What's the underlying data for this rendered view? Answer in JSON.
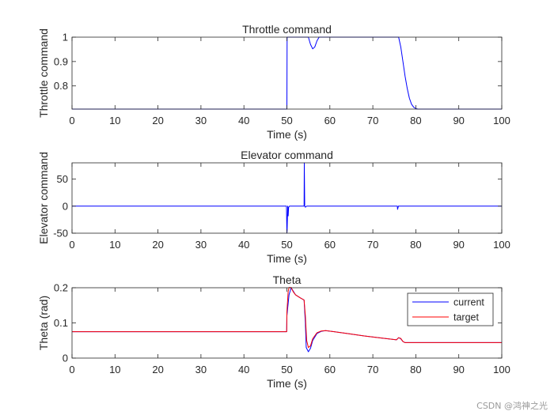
{
  "chart_data": [
    {
      "type": "line",
      "title": "Throttle command",
      "xlabel": "Time (s)",
      "ylabel": "Throttle command",
      "xlim": [
        0,
        100
      ],
      "ylim": [
        0.705,
        1.0
      ],
      "xticks": [
        0,
        10,
        20,
        30,
        40,
        50,
        60,
        70,
        80,
        90,
        100
      ],
      "yticks": [
        0.8,
        0.9,
        1
      ],
      "xtick_labels": [
        "0",
        "10",
        "20",
        "30",
        "40",
        "50",
        "60",
        "70",
        "80",
        "90",
        "100"
      ],
      "ytick_labels": [
        "0.8",
        "0.9",
        "1"
      ],
      "series": [
        {
          "name": "throttle",
          "color": "#0000ff",
          "x": [
            0,
            50,
            50.05,
            50.3,
            55,
            55.5,
            56,
            56.5,
            57,
            57.5,
            58,
            76,
            76.5,
            77,
            77.5,
            78,
            78.5,
            79,
            79.5,
            80,
            80.5,
            100
          ],
          "y": [
            0.705,
            0.705,
            1.0,
            1.0,
            1.0,
            0.97,
            0.952,
            0.96,
            0.985,
            1.0,
            1.0,
            1.0,
            0.96,
            0.9,
            0.84,
            0.79,
            0.75,
            0.725,
            0.713,
            0.707,
            0.705,
            0.705
          ]
        }
      ]
    },
    {
      "type": "line",
      "title": "Elevator command",
      "xlabel": "Time (s)",
      "ylabel": "Elevator command",
      "xlim": [
        0,
        100
      ],
      "ylim": [
        -50,
        80
      ],
      "xticks": [
        0,
        10,
        20,
        30,
        40,
        50,
        60,
        70,
        80,
        90,
        100
      ],
      "yticks": [
        -50,
        0,
        50
      ],
      "xtick_labels": [
        "0",
        "10",
        "20",
        "30",
        "40",
        "50",
        "60",
        "70",
        "80",
        "90",
        "100"
      ],
      "ytick_labels": [
        "-50",
        "0",
        "50"
      ],
      "series": [
        {
          "name": "elevator",
          "color": "#0000ff",
          "x": [
            0,
            49.9,
            50,
            50.05,
            50.2,
            50.3,
            50.4,
            50.6,
            54,
            54.05,
            54.15,
            54.3,
            54.6,
            55,
            75.7,
            75.75,
            75.85,
            75.95,
            100
          ],
          "y": [
            0,
            0,
            -50,
            -45,
            0,
            -18,
            -2,
            0,
            0,
            80,
            0,
            -2,
            0,
            0,
            0,
            -6,
            -3,
            0,
            0
          ]
        }
      ]
    },
    {
      "type": "line",
      "title": "Theta",
      "xlabel": "Time (s)",
      "ylabel": "Theta (rad)",
      "xlim": [
        0,
        100
      ],
      "ylim": [
        0,
        0.2
      ],
      "xticks": [
        0,
        10,
        20,
        30,
        40,
        50,
        60,
        70,
        80,
        90,
        100
      ],
      "yticks": [
        0,
        0.1,
        0.2
      ],
      "xtick_labels": [
        "0",
        "10",
        "20",
        "30",
        "40",
        "50",
        "60",
        "70",
        "80",
        "90",
        "100"
      ],
      "ytick_labels": [
        "0",
        "0.1",
        "0.2"
      ],
      "legend": {
        "location": "top-right",
        "entries": [
          "current",
          "target"
        ]
      },
      "series": [
        {
          "name": "current",
          "color": "#0000ff",
          "x": [
            0,
            49.95,
            50,
            50.5,
            51,
            51.5,
            52,
            53,
            54,
            54.3,
            54.5,
            55,
            55.5,
            56,
            57,
            58,
            59,
            61,
            64,
            68,
            72,
            75.5,
            76,
            76.5,
            77,
            77.5,
            100
          ],
          "y": [
            0.075,
            0.075,
            0.12,
            0.18,
            0.2,
            0.19,
            0.18,
            0.172,
            0.165,
            0.1,
            0.03,
            0.018,
            0.028,
            0.05,
            0.07,
            0.076,
            0.078,
            0.075,
            0.07,
            0.063,
            0.057,
            0.052,
            0.058,
            0.055,
            0.047,
            0.044,
            0.044
          ]
        },
        {
          "name": "target",
          "color": "#ff0000",
          "x": [
            0,
            49.95,
            50,
            50.3,
            50.6,
            51,
            51.5,
            52,
            53,
            54,
            54.3,
            54.6,
            55,
            55.5,
            56,
            57,
            58,
            59,
            61,
            64,
            68,
            72,
            75.5,
            76,
            76.5,
            77,
            77.5,
            100
          ],
          "y": [
            0.075,
            0.075,
            0.13,
            0.19,
            0.205,
            0.2,
            0.188,
            0.18,
            0.172,
            0.165,
            0.12,
            0.05,
            0.03,
            0.035,
            0.055,
            0.072,
            0.077,
            0.078,
            0.075,
            0.07,
            0.063,
            0.057,
            0.052,
            0.058,
            0.056,
            0.047,
            0.044,
            0.044
          ]
        }
      ]
    }
  ],
  "watermark": "CSDN @鸿神之光"
}
